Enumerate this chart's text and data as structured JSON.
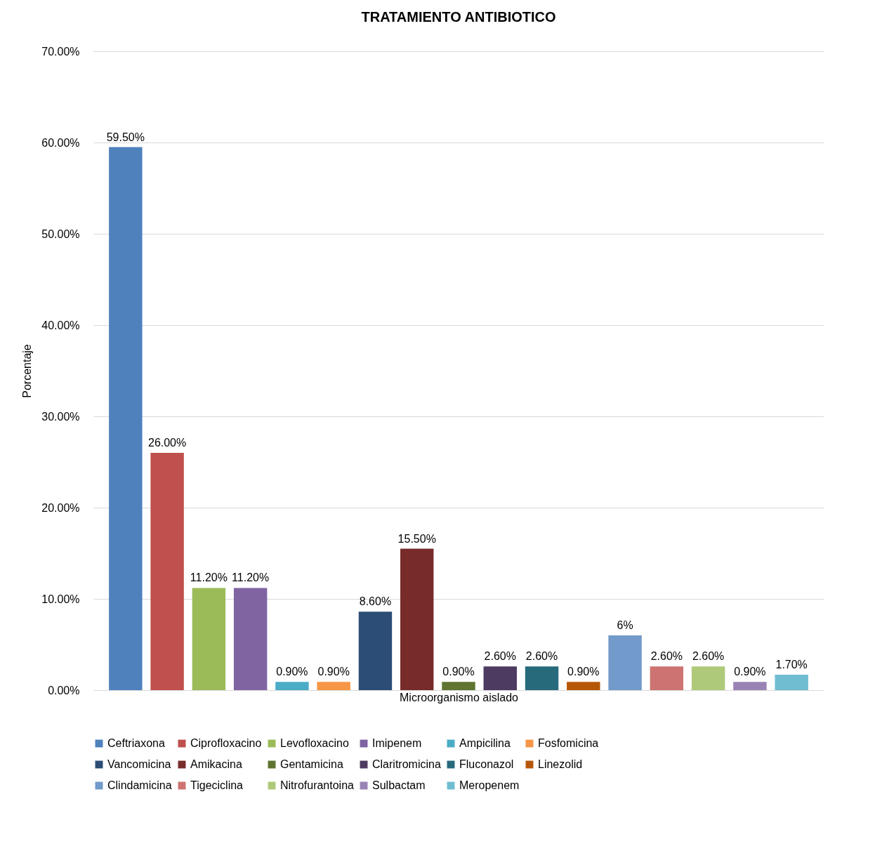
{
  "chart_data": {
    "type": "bar",
    "title": "TRATAMIENTO ANTIBIOTICO",
    "xlabel": "Microorganismo aislado",
    "ylabel": "Porcentaje",
    "categories": [
      null
    ],
    "series": [
      {
        "name": "Ceftriaxona",
        "color": "#4f81bd",
        "values": [
          59.5
        ],
        "value_labels": [
          "59.50%"
        ]
      },
      {
        "name": "Ciprofloxacino",
        "color": "#c0504d",
        "values": [
          26.0
        ],
        "value_labels": [
          "26.00%"
        ]
      },
      {
        "name": "Levofloxacino",
        "color": "#9bbb59",
        "values": [
          11.2
        ],
        "value_labels": [
          "11.20%"
        ]
      },
      {
        "name": "Imipenem",
        "color": "#8064a2",
        "values": [
          11.2
        ],
        "value_labels": [
          "11.20%"
        ]
      },
      {
        "name": "Ampicilina",
        "color": "#4bacc6",
        "values": [
          0.9
        ],
        "value_labels": [
          "0.90%"
        ]
      },
      {
        "name": "Fosfomicina",
        "color": "#f79646",
        "values": [
          0.9
        ],
        "value_labels": [
          "0.90%"
        ]
      },
      {
        "name": "Vancomicina",
        "color": "#2c4d75",
        "values": [
          8.6
        ],
        "value_labels": [
          "8.60%"
        ]
      },
      {
        "name": "Amikacina",
        "color": "#772c2a",
        "values": [
          15.5
        ],
        "value_labels": [
          "15.50%"
        ]
      },
      {
        "name": "Gentamicina",
        "color": "#5f7530",
        "values": [
          0.9
        ],
        "value_labels": [
          "0.90%"
        ]
      },
      {
        "name": "Claritromicina",
        "color": "#4d3b62",
        "values": [
          2.6
        ],
        "value_labels": [
          "2.60%"
        ]
      },
      {
        "name": "Fluconazol",
        "color": "#276a7c",
        "values": [
          2.6
        ],
        "value_labels": [
          "2.60%"
        ]
      },
      {
        "name": "Linezolid",
        "color": "#b65708",
        "values": [
          0.9
        ],
        "value_labels": [
          "0.90%"
        ]
      },
      {
        "name": "Clindamicina",
        "color": "#729aca",
        "values": [
          6
        ],
        "value_labels": [
          "6%"
        ]
      },
      {
        "name": "Tigeciclina",
        "color": "#cd7371",
        "values": [
          2.6
        ],
        "value_labels": [
          "2.60%"
        ]
      },
      {
        "name": "Nitrofurantoina",
        "color": "#afc97a",
        "values": [
          2.6
        ],
        "value_labels": [
          "2.60%"
        ]
      },
      {
        "name": "Sulbactam",
        "color": "#9983b5",
        "values": [
          0.9
        ],
        "value_labels": [
          "0.90%"
        ]
      },
      {
        "name": "Meropenem",
        "color": "#6fbdd1",
        "values": [
          1.7
        ],
        "value_labels": [
          "1.70%"
        ]
      }
    ],
    "ylim": [
      0,
      70
    ],
    "yticks": [
      {
        "value": 0,
        "label": "0.00%"
      },
      {
        "value": 10,
        "label": "10.00%"
      },
      {
        "value": 20,
        "label": "20.00%"
      },
      {
        "value": 30,
        "label": "30.00%"
      },
      {
        "value": 40,
        "label": "40.00%"
      },
      {
        "value": 50,
        "label": "50.00%"
      },
      {
        "value": 60,
        "label": "60.00%"
      },
      {
        "value": 70,
        "label": "70.00%"
      }
    ],
    "grid": "y",
    "legend": "bottom"
  }
}
